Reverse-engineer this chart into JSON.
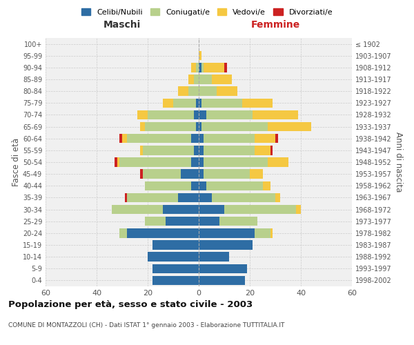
{
  "age_groups": [
    "0-4",
    "5-9",
    "10-14",
    "15-19",
    "20-24",
    "25-29",
    "30-34",
    "35-39",
    "40-44",
    "45-49",
    "50-54",
    "55-59",
    "60-64",
    "65-69",
    "70-74",
    "75-79",
    "80-84",
    "85-89",
    "90-94",
    "95-99",
    "100+"
  ],
  "birth_years": [
    "1998-2002",
    "1993-1997",
    "1988-1992",
    "1983-1987",
    "1978-1982",
    "1973-1977",
    "1968-1972",
    "1963-1967",
    "1958-1962",
    "1953-1957",
    "1948-1952",
    "1943-1947",
    "1938-1942",
    "1933-1937",
    "1928-1932",
    "1923-1927",
    "1918-1922",
    "1913-1917",
    "1908-1912",
    "1903-1907",
    "≤ 1902"
  ],
  "colors": {
    "celibi": "#2e6da4",
    "coniugati": "#b8d08c",
    "vedovi": "#f5c842",
    "divorziati": "#cc2222"
  },
  "males": {
    "celibi": [
      18,
      18,
      20,
      18,
      28,
      13,
      14,
      8,
      3,
      7,
      3,
      2,
      3,
      1,
      2,
      1,
      0,
      0,
      0,
      0,
      0
    ],
    "coniugati": [
      0,
      0,
      0,
      0,
      3,
      8,
      20,
      20,
      18,
      15,
      28,
      20,
      25,
      20,
      18,
      9,
      4,
      2,
      1,
      0,
      0
    ],
    "vedovi": [
      0,
      0,
      0,
      0,
      0,
      0,
      0,
      0,
      0,
      0,
      1,
      1,
      2,
      2,
      4,
      4,
      4,
      2,
      2,
      0,
      0
    ],
    "divorziati": [
      0,
      0,
      0,
      0,
      0,
      0,
      0,
      1,
      0,
      1,
      1,
      0,
      1,
      0,
      0,
      0,
      0,
      0,
      0,
      0,
      0
    ]
  },
  "females": {
    "celibi": [
      18,
      19,
      12,
      21,
      22,
      8,
      10,
      5,
      3,
      2,
      2,
      2,
      2,
      1,
      3,
      1,
      0,
      0,
      1,
      0,
      0
    ],
    "coniugati": [
      0,
      0,
      0,
      0,
      6,
      15,
      28,
      25,
      22,
      18,
      25,
      20,
      20,
      26,
      18,
      16,
      7,
      5,
      1,
      0,
      0
    ],
    "vedovi": [
      0,
      0,
      0,
      0,
      1,
      0,
      2,
      2,
      3,
      5,
      8,
      6,
      8,
      17,
      18,
      12,
      8,
      8,
      8,
      1,
      0
    ],
    "divorziati": [
      0,
      0,
      0,
      0,
      0,
      0,
      0,
      0,
      0,
      0,
      0,
      1,
      1,
      0,
      0,
      0,
      0,
      0,
      1,
      0,
      0
    ]
  },
  "xlim": 60,
  "title": "Popolazione per età, sesso e stato civile - 2003",
  "subtitle": "COMUNE DI MONTAZZOLI (CH) - Dati ISTAT 1° gennaio 2003 - Elaborazione TUTTITALIA.IT",
  "ylabel_left": "Fasce di età",
  "ylabel_right": "Anni di nascita",
  "xlabel_left": "Maschi",
  "xlabel_right": "Femmine",
  "legend_labels": [
    "Celibi/Nubili",
    "Coniugati/e",
    "Vedovi/e",
    "Divorziati/e"
  ]
}
